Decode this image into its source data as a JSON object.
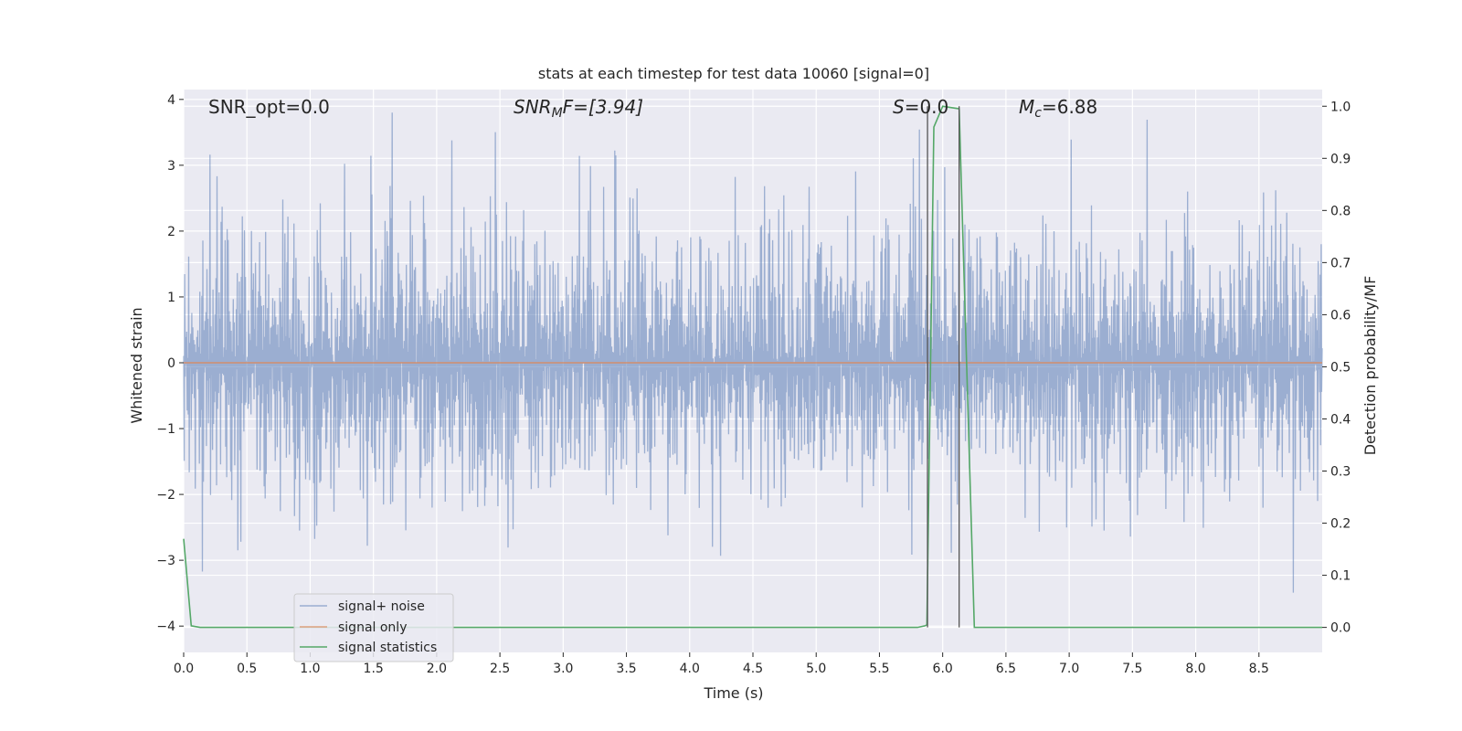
{
  "chart_data": {
    "type": "line",
    "title": "stats at each timestep for test data 10060 [signal=0]",
    "xlabel": "Time (s)",
    "ylabel_left": "Whitened strain",
    "ylabel_right": "Detection probability/MF",
    "xlim": [
      0.0,
      9.0
    ],
    "ylim_left": [
      -4.4,
      4.15
    ],
    "ylim_right": [
      -0.048,
      1.032
    ],
    "x_ticks": [
      "0.0",
      "0.5",
      "1.0",
      "1.5",
      "2.0",
      "2.5",
      "3.0",
      "3.5",
      "4.0",
      "4.5",
      "5.0",
      "5.5",
      "6.0",
      "6.5",
      "7.0",
      "7.5",
      "8.0",
      "8.5"
    ],
    "y_left_ticks": [
      "4",
      "3",
      "2",
      "1",
      "0",
      "−1",
      "−2",
      "−3",
      "−4"
    ],
    "y_right_ticks": [
      "1.0",
      "0.9",
      "0.8",
      "0.7",
      "0.6",
      "0.5",
      "0.4",
      "0.3",
      "0.2",
      "0.1",
      "0.0"
    ],
    "grid": true,
    "legend_position": "lower-left",
    "annotations": {
      "snr_opt": "SNR_opt=0.0",
      "snr_mf_main": "SNR",
      "snr_mf_sub": "M",
      "snr_mf_rest": "F=[3.94]",
      "s_main": "S",
      "s_rest": "=0.0",
      "mc_main": "M",
      "mc_sub": "c",
      "mc_rest": "=6.88"
    },
    "vertical_lines_x": [
      5.88,
      6.13
    ],
    "series": [
      {
        "name": "signal+ noise",
        "color": "#4c72b0",
        "axis": "left",
        "description": "whitened noise, dense, roughly within ±2.5",
        "sample_rate": 250,
        "envelope": 2.6
      },
      {
        "name": "signal only",
        "color": "#dd8452",
        "axis": "left",
        "x": [
          0.0,
          9.0
        ],
        "y": [
          0.0,
          0.0
        ]
      },
      {
        "name": "signal statistics",
        "color": "#55a868",
        "axis": "right",
        "x": [
          0.0,
          0.06,
          0.13,
          0.5,
          1.0,
          2.0,
          3.0,
          4.0,
          5.0,
          5.5,
          5.8,
          5.86,
          5.875,
          5.93,
          6.0,
          6.13,
          6.25,
          7.0,
          8.0,
          9.0
        ],
        "y": [
          0.17,
          0.003,
          0.0,
          0.0,
          0.0,
          0.0,
          0.0,
          0.0,
          0.0,
          0.0,
          0.0,
          0.003,
          0.005,
          0.96,
          1.0,
          0.995,
          0.0,
          0.0,
          0.0,
          0.0
        ]
      }
    ]
  }
}
